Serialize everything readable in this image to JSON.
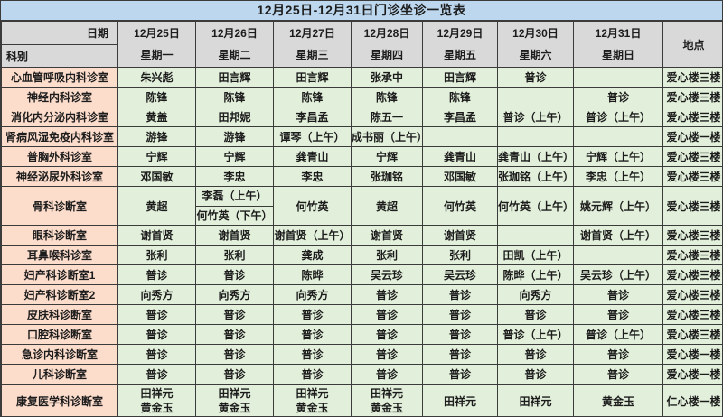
{
  "title": "12月25日-12月31日门诊坐诊一览表",
  "colors": {
    "title_bg": "#bdd7ee",
    "header_bg": "#d9d9d9",
    "dept_bg": "#fcdccb",
    "cell_bg": "#e2efda",
    "border": "#3b3b3b"
  },
  "header": {
    "date_label": "日期",
    "dept_label": "科别",
    "location_label": "地点",
    "days": [
      {
        "date": "12月25日",
        "weekday": "星期一"
      },
      {
        "date": "12月26日",
        "weekday": "星期二"
      },
      {
        "date": "12月27日",
        "weekday": "星期三"
      },
      {
        "date": "12月28日",
        "weekday": "星期四"
      },
      {
        "date": "12月29日",
        "weekday": "星期五"
      },
      {
        "date": "12月30日",
        "weekday": "星期六"
      },
      {
        "date": "12月31日",
        "weekday": "星期日"
      }
    ]
  },
  "rows": [
    {
      "dept": "心血管呼吸内科诊室",
      "cells": [
        "朱兴彪",
        "田言辉",
        "田言辉",
        "张承中",
        "田言辉",
        "普诊",
        ""
      ],
      "location": "爱心楼三楼"
    },
    {
      "dept": "神经内科诊室",
      "cells": [
        "陈锋",
        "陈锋",
        "陈锋",
        "陈锋",
        "陈锋",
        "",
        "普诊"
      ],
      "location": "爱心楼三楼"
    },
    {
      "dept": "消化内分泌内科诊室",
      "cells": [
        "黄盖",
        "田邦妮",
        "李昌孟",
        "陈五一",
        "李昌孟",
        "普诊（上午）",
        "普诊（上午）"
      ],
      "location": "爱心楼三楼"
    },
    {
      "dept": "肾病风湿免疫内科诊室",
      "cells": [
        "游锋",
        "游锋",
        "谭琴（上午）",
        "成书丽（上午）",
        "",
        "",
        ""
      ],
      "location": "爱心楼一楼"
    },
    {
      "dept": "普胸外科诊室",
      "cells": [
        "宁辉",
        "宁辉",
        "龚青山",
        "宁辉",
        "龚青山",
        "龚青山（上午）",
        "宁辉（上午）"
      ],
      "location": "爱心楼三楼"
    },
    {
      "dept": "神经泌尿外科诊室",
      "cells": [
        "邓国敏",
        "李忠",
        "李忠",
        "张珈铭",
        "邓国敏",
        "张珈铭（上午）",
        "李忠（上午）"
      ],
      "location": "爱心楼三楼"
    },
    {
      "dept": "骨科诊断室",
      "cells": [
        "黄超",
        {
          "split": [
            "李磊（上午）",
            "何竹英（下午）"
          ]
        },
        "何竹英",
        "黄超",
        "何竹英",
        "何竹英（上午）",
        "姚元辉（上午）"
      ],
      "location": "爱心楼三楼"
    },
    {
      "dept": "眼科诊断室",
      "cells": [
        "谢首贤",
        "谢首贤",
        "谢首贤（上午）",
        "谢首贤",
        "谢首贤",
        "",
        "谢首贤（上午）"
      ],
      "location": "爱心楼三楼"
    },
    {
      "dept": "耳鼻喉科诊室",
      "cells": [
        "张利",
        "张利",
        "龚成",
        "张利",
        "张利",
        "田凯（上午）",
        ""
      ],
      "location": "爱心楼三楼"
    },
    {
      "dept": "妇产科诊断室1",
      "cells": [
        "普诊",
        "普诊",
        "陈晔",
        "吴云珍",
        "吴云珍",
        "陈晔（上午）",
        "吴云珍（上午）"
      ],
      "location": "爱心楼三楼"
    },
    {
      "dept": "妇产科诊断室2",
      "cells": [
        "向秀方",
        "向秀方",
        "向秀方",
        "普诊",
        "普诊",
        "向秀方",
        "普诊"
      ],
      "location": "爱心楼三楼"
    },
    {
      "dept": "皮肤科诊断室",
      "cells": [
        "普诊",
        "普诊",
        "普诊",
        "普诊",
        "普诊",
        "普诊",
        "普诊"
      ],
      "location": "爱心楼三楼"
    },
    {
      "dept": "口腔科诊断室",
      "cells": [
        "普诊",
        "普诊",
        "普诊",
        "普诊",
        "普诊",
        "普诊（上午）",
        "普诊（上午）"
      ],
      "location": "爱心楼三楼"
    },
    {
      "dept": "急诊内科诊断室",
      "cells": [
        "普诊",
        "普诊",
        "普诊",
        "普诊",
        "普诊",
        "普诊",
        "普诊"
      ],
      "location": "爱心楼一楼"
    },
    {
      "dept": "儿科诊断室",
      "cells": [
        "普诊",
        "普诊",
        "普诊",
        "普诊",
        "普诊",
        "普诊",
        "普诊"
      ],
      "location": "爱心楼一楼"
    },
    {
      "dept": "康复医学科诊断室",
      "cells": [
        {
          "lines": [
            "田祥元",
            "黄金玉"
          ]
        },
        {
          "lines": [
            "田祥元",
            "黄金玉"
          ]
        },
        {
          "lines": [
            "田祥元",
            "黄金玉"
          ]
        },
        {
          "lines": [
            "田祥元",
            "黄金玉"
          ]
        },
        "田祥元",
        "田祥元",
        "黄金玉"
      ],
      "location": "仁心楼一楼"
    }
  ]
}
